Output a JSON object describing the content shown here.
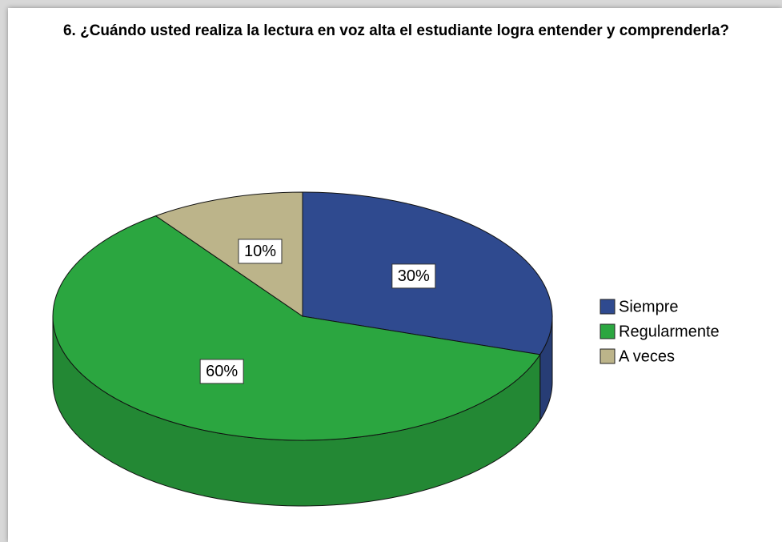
{
  "chart_data": {
    "type": "pie",
    "title": "6. ¿Cuándo usted realiza la lectura en voz alta el estudiante logra entender y comprenderla?",
    "categories": [
      "Siempre",
      "Regularmente",
      "A veces"
    ],
    "values": [
      30,
      60,
      10
    ],
    "value_labels": [
      "30%",
      "60%",
      "10%"
    ],
    "colors": [
      "#2f4a8f",
      "#2ba640",
      "#bcb48a"
    ],
    "legend": "right"
  }
}
